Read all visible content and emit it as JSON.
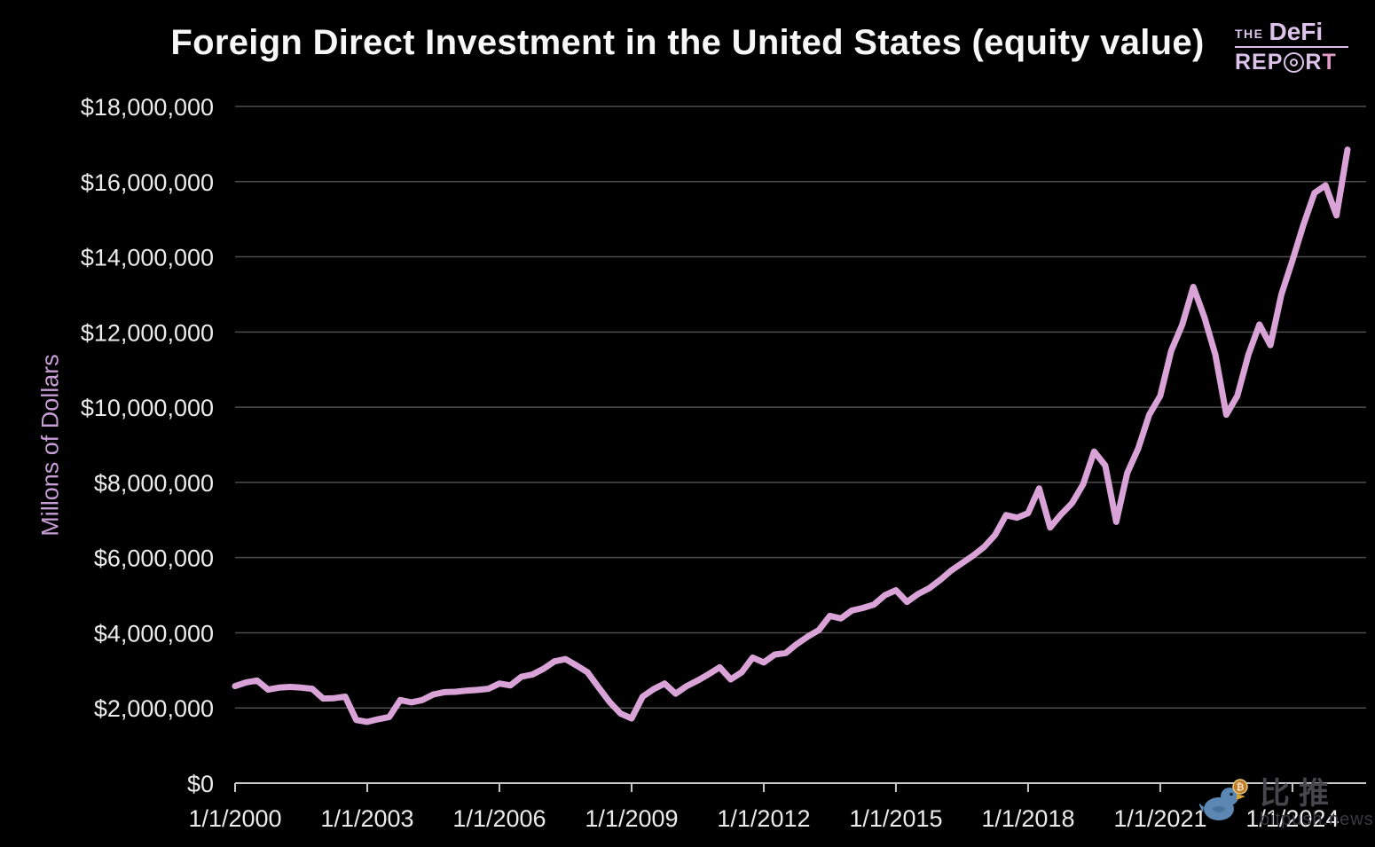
{
  "title": "Foreign Direct Investment in the United States (equity value)",
  "logo": {
    "the": "THE",
    "brand": "DeFi",
    "rep": "REP",
    "r": "R",
    "t": "T"
  },
  "watermark": {
    "chinese": "比推",
    "english": "bitpush.news",
    "bird_color": "#5b87b2",
    "coin_color": "#c07a2e",
    "coin_symbol": "B"
  },
  "y_axis": {
    "title": "Millons of Dollars",
    "title_color": "#c79ed6",
    "tick_values": [
      0,
      2000000,
      4000000,
      6000000,
      8000000,
      10000000,
      12000000,
      14000000,
      16000000,
      18000000
    ],
    "tick_labels": [
      "$0",
      "$2,000,000",
      "$4,000,000",
      "$6,000,000",
      "$8,000,000",
      "$10,000,000",
      "$12,000,000",
      "$14,000,000",
      "$16,000,000",
      "$18,000,000"
    ]
  },
  "x_axis": {
    "tick_years": [
      2000,
      2003,
      2006,
      2009,
      2012,
      2015,
      2018,
      2021,
      2024
    ],
    "tick_labels": [
      "1/1/2000",
      "1/1/2003",
      "1/1/2006",
      "1/1/2009",
      "1/1/2012",
      "1/1/2015",
      "1/1/2018",
      "1/1/2021",
      "1/1/2024"
    ]
  },
  "chart_data": {
    "type": "line",
    "title": "Foreign Direct Investment in the United States (equity value)",
    "ylabel": "Millons of Dollars",
    "xlabel": "",
    "units": "millions of US dollars",
    "frequency": "quarterly",
    "x_start": 2000.0,
    "x_step": 0.25,
    "x_end": 2025.25,
    "ylim": [
      0,
      18000000
    ],
    "y_tick_step": 2000000,
    "grid": true,
    "legend": "none",
    "line_color": "#d9a3d8",
    "background": "#000000",
    "values": [
      2580000,
      2680000,
      2730000,
      2490000,
      2540000,
      2560000,
      2540000,
      2510000,
      2250000,
      2260000,
      2300000,
      1680000,
      1630000,
      1700000,
      1760000,
      2210000,
      2150000,
      2210000,
      2360000,
      2420000,
      2430000,
      2460000,
      2480000,
      2510000,
      2650000,
      2600000,
      2830000,
      2890000,
      3040000,
      3240000,
      3300000,
      3130000,
      2950000,
      2550000,
      2160000,
      1850000,
      1720000,
      2300000,
      2500000,
      2650000,
      2380000,
      2580000,
      2730000,
      2900000,
      3080000,
      2760000,
      2950000,
      3340000,
      3210000,
      3420000,
      3460000,
      3700000,
      3900000,
      4070000,
      4450000,
      4380000,
      4590000,
      4660000,
      4750000,
      5000000,
      5130000,
      4820000,
      5030000,
      5180000,
      5400000,
      5650000,
      5850000,
      6050000,
      6280000,
      6600000,
      7130000,
      7060000,
      7180000,
      7840000,
      6800000,
      7150000,
      7450000,
      7950000,
      8820000,
      8450000,
      6950000,
      8250000,
      8900000,
      9800000,
      10300000,
      11500000,
      12200000,
      13200000,
      12400000,
      11400000,
      9800000,
      10300000,
      11400000,
      12200000,
      11650000,
      13000000,
      13900000,
      14850000,
      15700000,
      15900000,
      15100000,
      16850000
    ]
  }
}
